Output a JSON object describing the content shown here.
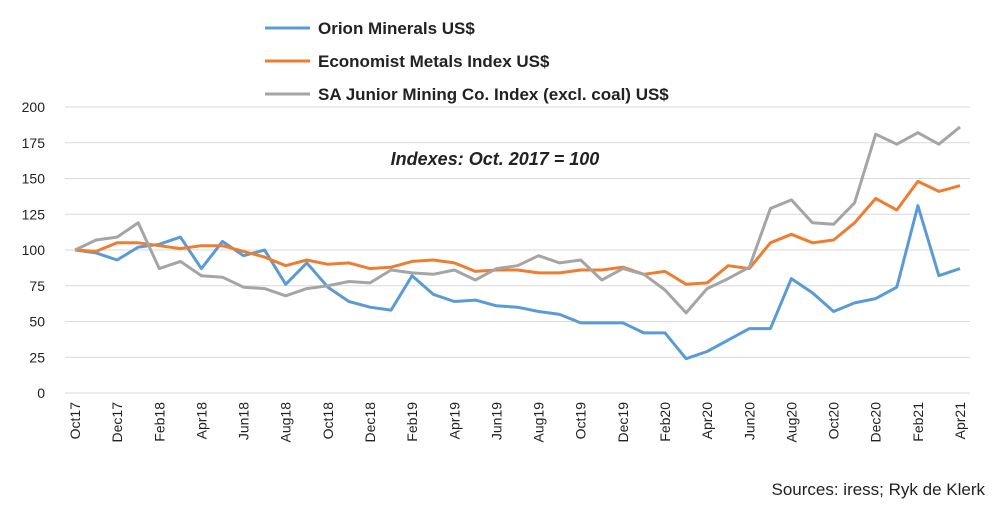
{
  "chart_data": {
    "type": "line",
    "annotation": "Indexes: Oct. 2017 = 100",
    "source": "Sources: iress; Ryk de Klerk",
    "categories": [
      "Oct17",
      null,
      "Dec17",
      null,
      "Feb18",
      null,
      "Apr18",
      null,
      "Jun18",
      null,
      "Aug18",
      null,
      "Oct18",
      null,
      "Dec18",
      null,
      "Feb19",
      null,
      "Apr19",
      null,
      "Jun19",
      null,
      "Aug19",
      null,
      "Oct19",
      null,
      "Dec19",
      null,
      "Feb20",
      null,
      "Apr20",
      null,
      "Jun20",
      null,
      "Aug20",
      null,
      "Oct20",
      null,
      "Dec20",
      null,
      "Feb21",
      null,
      "Apr21"
    ],
    "series": [
      {
        "name": "Orion Minerals US$",
        "color": "#5b9bd5",
        "values": [
          100,
          98,
          93,
          102,
          104,
          109,
          87,
          106,
          96,
          100,
          76,
          91,
          74,
          64,
          60,
          58,
          82,
          69,
          64,
          65,
          61,
          60,
          57,
          55,
          49,
          49,
          49,
          42,
          42,
          24,
          29,
          37,
          45,
          45,
          80,
          70,
          57,
          63,
          66,
          74,
          131,
          82,
          87
        ]
      },
      {
        "name": "Economist Metals Index US$",
        "color": "#ed7d31",
        "values": [
          100,
          99,
          105,
          105,
          103,
          101,
          103,
          103,
          99,
          95,
          89,
          93,
          90,
          91,
          87,
          88,
          92,
          93,
          91,
          85,
          86,
          86,
          84,
          84,
          86,
          86,
          88,
          83,
          85,
          76,
          77,
          89,
          87,
          105,
          111,
          105,
          107,
          119,
          136,
          128,
          148,
          141,
          145
        ]
      },
      {
        "name": "SA Junior Mining Co. Index (excl. coal) US$",
        "color": "#a5a5a5",
        "values": [
          100,
          107,
          109,
          119,
          87,
          92,
          82,
          81,
          74,
          73,
          68,
          73,
          75,
          78,
          77,
          86,
          84,
          83,
          86,
          79,
          87,
          89,
          96,
          91,
          93,
          79,
          87,
          83,
          72,
          56,
          73,
          80,
          88,
          129,
          135,
          119,
          118,
          133,
          181,
          174,
          182,
          174,
          186
        ]
      }
    ],
    "ylim": [
      0,
      200
    ],
    "yticks": [
      0,
      25,
      50,
      75,
      100,
      125,
      150,
      175,
      200
    ],
    "grid": true
  }
}
